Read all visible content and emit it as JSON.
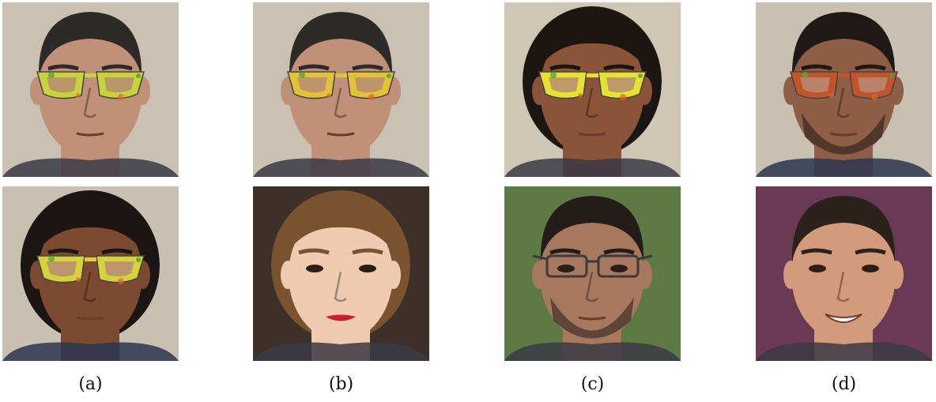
{
  "figure": {
    "columns": [
      {
        "caption": "(a)",
        "photos": [
          {
            "subject": "man-short-dark-hair",
            "glasses": "adversarial-yellow-green",
            "background": "#c9c2b2",
            "skin": "#c09078",
            "hair": "#2d2a27",
            "frame": "#c8d23a"
          },
          {
            "subject": "woman-curly-dark-hair",
            "glasses": "adversarial-yellow-green",
            "background": "#c8c1b1",
            "skin": "#7c4a30",
            "hair": "#1b1613",
            "frame": "#d6d23c"
          }
        ]
      },
      {
        "caption": "(b)",
        "photos": [
          {
            "subject": "man-short-dark-hair",
            "glasses": "adversarial-orange-yellow",
            "background": "#c9c2b2",
            "skin": "#c09078",
            "hair": "#2d2a27",
            "frame": "#e2c236"
          },
          {
            "subject": "woman-wavy-brown-hair",
            "glasses": "none",
            "background": "#3c3028",
            "skin": "#efcbb2",
            "hair": "#7a5230",
            "frame": ""
          }
        ]
      },
      {
        "caption": "(c)",
        "photos": [
          {
            "subject": "woman-curly-dark-hair",
            "glasses": "adversarial-yellow",
            "background": "#cfc6b4",
            "skin": "#8a5438",
            "hair": "#1c1612",
            "frame": "#e6e232"
          },
          {
            "subject": "man-beard-glasses-outdoors",
            "glasses": "real-thin-frame",
            "background": "#5d7a45",
            "skin": "#a8785e",
            "hair": "#231c18",
            "frame": "#3c3a3a"
          }
        ]
      },
      {
        "caption": "(d)",
        "photos": [
          {
            "subject": "man-short-dark-hair-stubble",
            "glasses": "adversarial-red-orange",
            "background": "#c8c1b1",
            "skin": "#8e5e46",
            "hair": "#1e1816",
            "frame": "#c2542c"
          },
          {
            "subject": "man-smiling-indoor",
            "glasses": "none",
            "background": "#6a3a55",
            "skin": "#d29c7c",
            "hair": "#2c211b",
            "frame": ""
          }
        ]
      }
    ]
  }
}
